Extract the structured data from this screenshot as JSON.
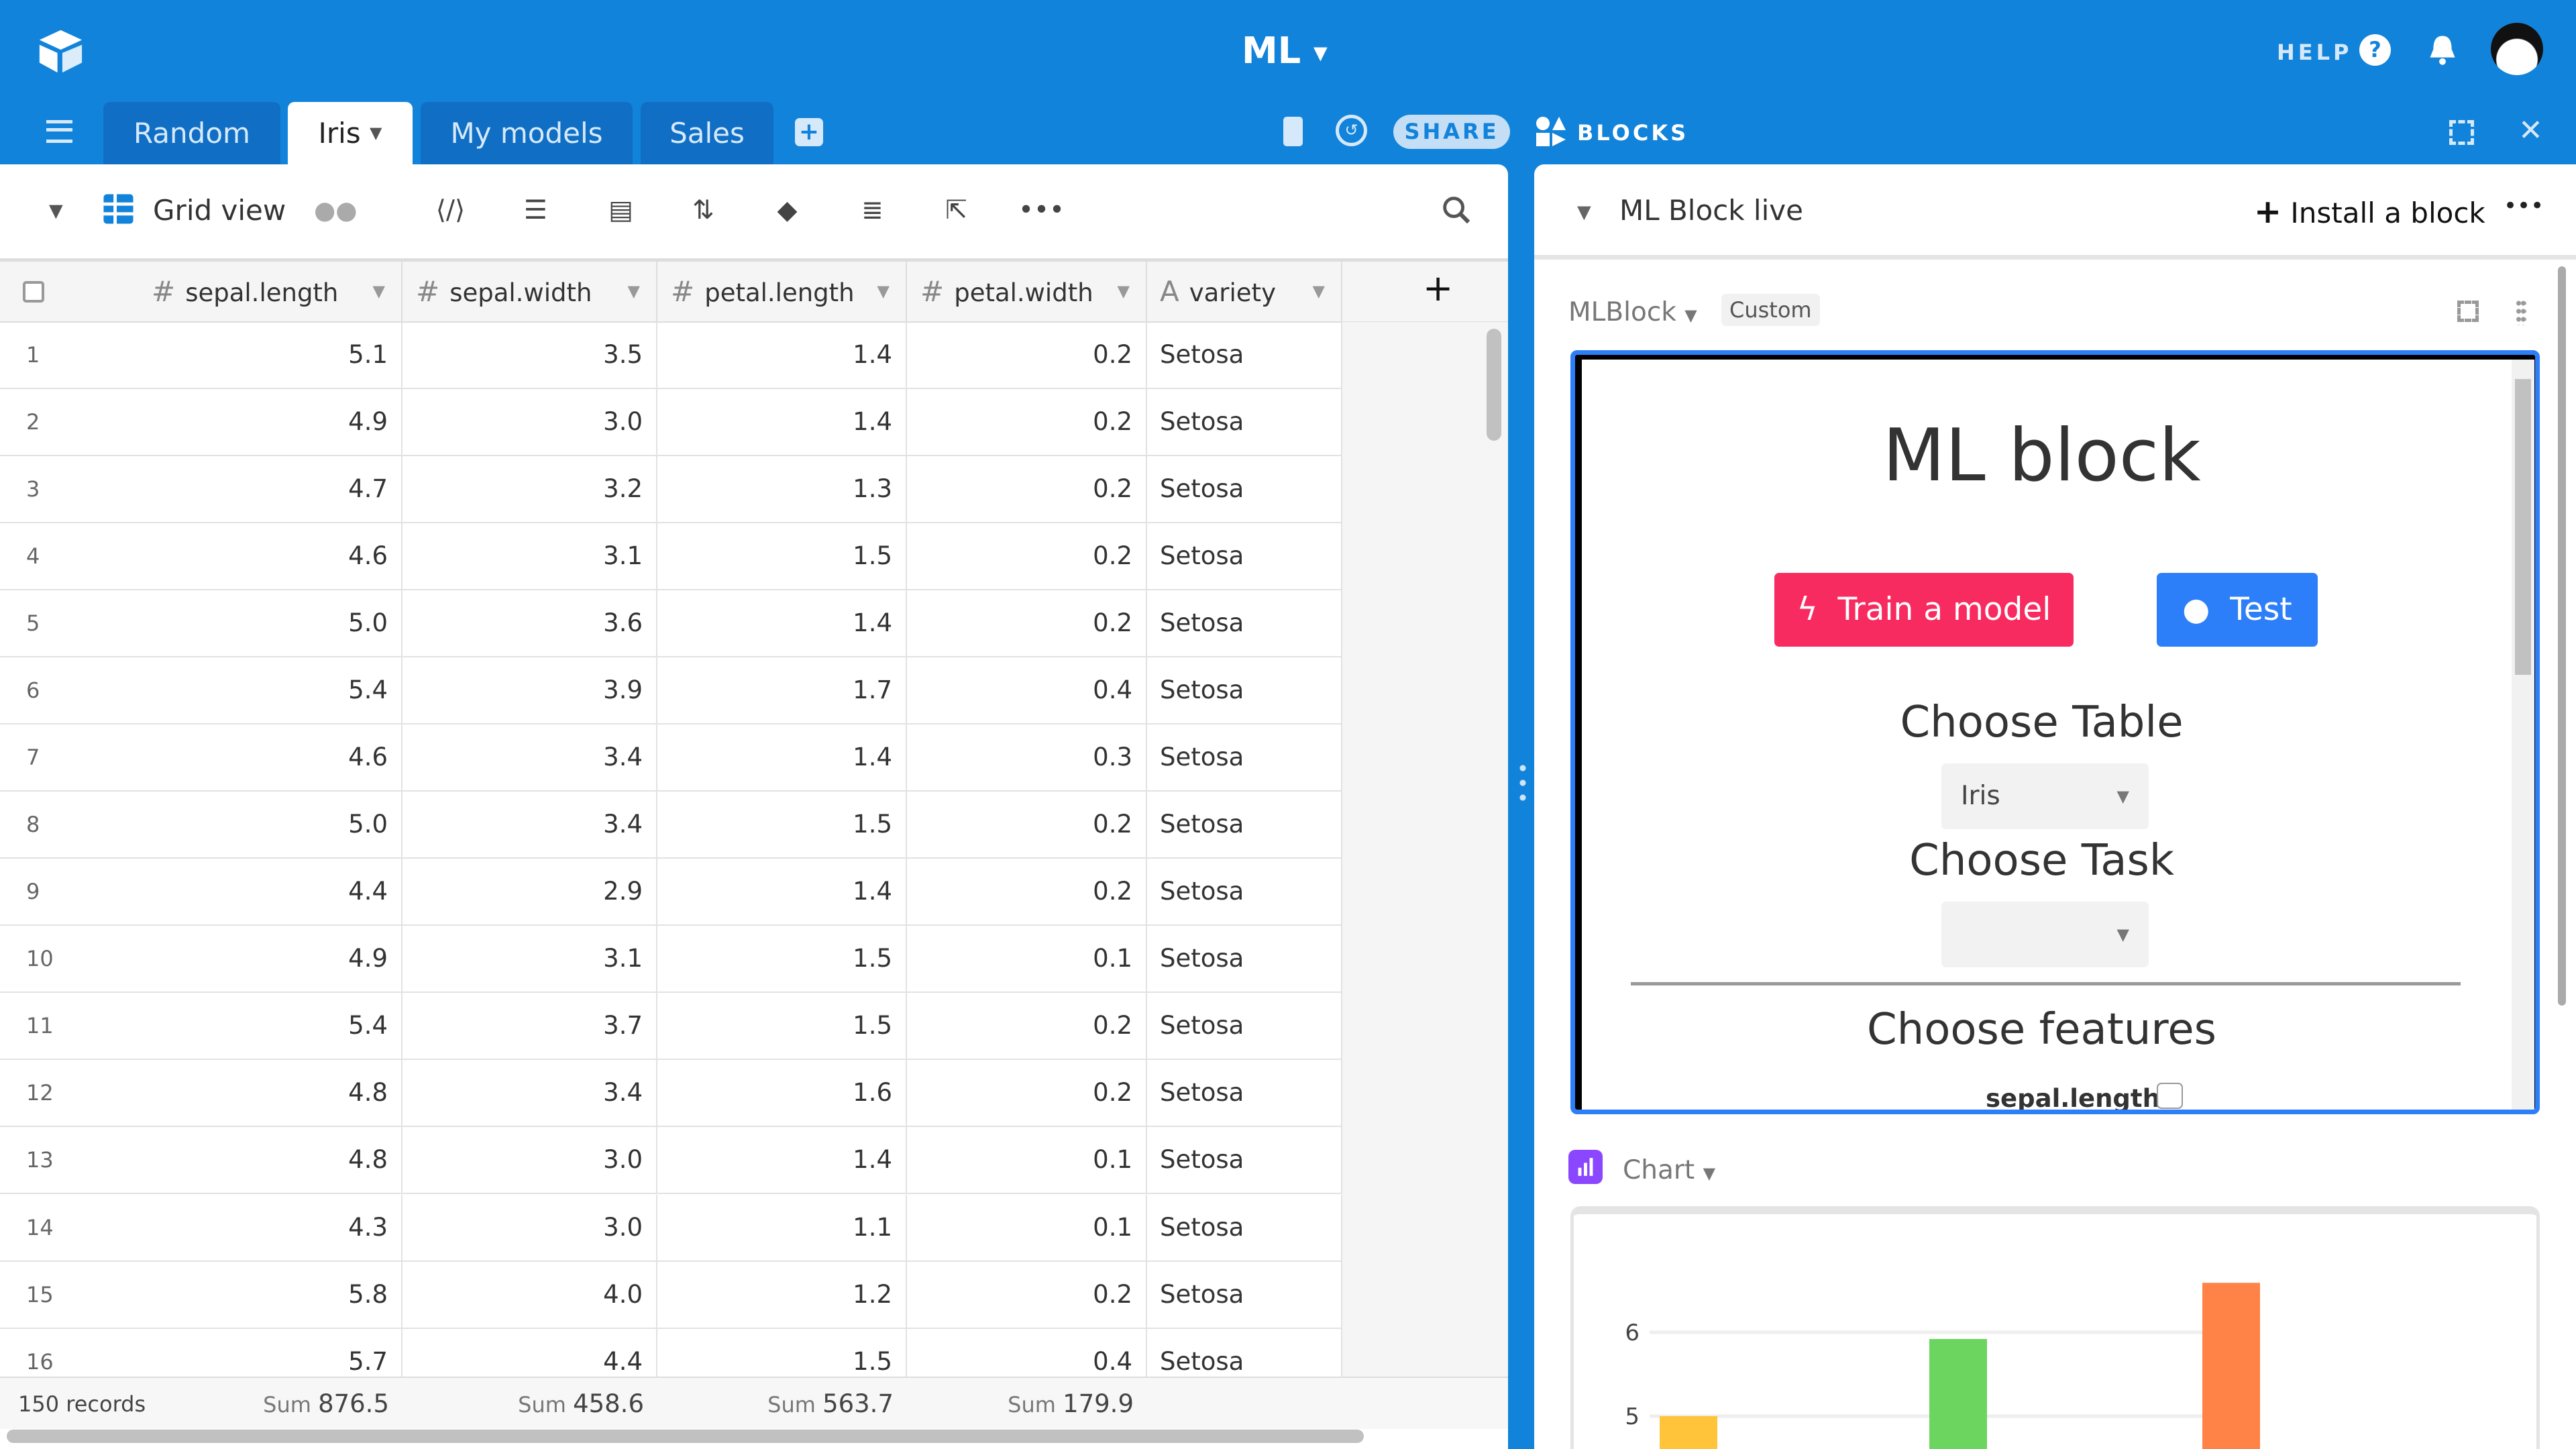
{
  "app": {
    "title": "ML",
    "help_label": "HELP"
  },
  "tabs": [
    {
      "label": "Random"
    },
    {
      "label": "Iris"
    },
    {
      "label": "My models"
    },
    {
      "label": "Sales"
    }
  ],
  "share_label": "SHARE",
  "blocks_label": "BLOCKS",
  "toolbar": {
    "view_name": "Grid view"
  },
  "table": {
    "columns": [
      {
        "label": "sepal.length",
        "icon": "#"
      },
      {
        "label": "sepal.width",
        "icon": "#"
      },
      {
        "label": "petal.length",
        "icon": "#"
      },
      {
        "label": "petal.width",
        "icon": "#"
      },
      {
        "label": "variety",
        "icon": "A"
      }
    ],
    "rows": [
      [
        "1",
        "5.1",
        "3.5",
        "1.4",
        "0.2",
        "Setosa"
      ],
      [
        "2",
        "4.9",
        "3.0",
        "1.4",
        "0.2",
        "Setosa"
      ],
      [
        "3",
        "4.7",
        "3.2",
        "1.3",
        "0.2",
        "Setosa"
      ],
      [
        "4",
        "4.6",
        "3.1",
        "1.5",
        "0.2",
        "Setosa"
      ],
      [
        "5",
        "5.0",
        "3.6",
        "1.4",
        "0.2",
        "Setosa"
      ],
      [
        "6",
        "5.4",
        "3.9",
        "1.7",
        "0.4",
        "Setosa"
      ],
      [
        "7",
        "4.6",
        "3.4",
        "1.4",
        "0.3",
        "Setosa"
      ],
      [
        "8",
        "5.0",
        "3.4",
        "1.5",
        "0.2",
        "Setosa"
      ],
      [
        "9",
        "4.4",
        "2.9",
        "1.4",
        "0.2",
        "Setosa"
      ],
      [
        "10",
        "4.9",
        "3.1",
        "1.5",
        "0.1",
        "Setosa"
      ],
      [
        "11",
        "5.4",
        "3.7",
        "1.5",
        "0.2",
        "Setosa"
      ],
      [
        "12",
        "4.8",
        "3.4",
        "1.6",
        "0.2",
        "Setosa"
      ],
      [
        "13",
        "4.8",
        "3.0",
        "1.4",
        "0.1",
        "Setosa"
      ],
      [
        "14",
        "4.3",
        "3.0",
        "1.1",
        "0.1",
        "Setosa"
      ],
      [
        "15",
        "5.8",
        "4.0",
        "1.2",
        "0.2",
        "Setosa"
      ],
      [
        "16",
        "5.7",
        "4.4",
        "1.5",
        "0.4",
        "Setosa"
      ]
    ],
    "footer": {
      "records": "150 records",
      "sum_label": "Sum",
      "sums": [
        "876.5",
        "458.6",
        "563.7",
        "179.9"
      ]
    }
  },
  "blocks_panel": {
    "dashboard_name": "ML Block live",
    "install_label": "Install a block",
    "ml_block": {
      "name": "MLBlock",
      "badge": "Custom",
      "heading": "ML block",
      "train_label": "Train a model",
      "test_label": "Test",
      "choose_table": "Choose Table",
      "table_value": "Iris",
      "choose_task": "Choose Task",
      "task_value": "",
      "choose_features": "Choose features",
      "feature_1": "sepal.length"
    },
    "chart_block": {
      "name": "Chart"
    }
  },
  "colors": {
    "brand": "#1283da",
    "train": "#f82b60",
    "test": "#2d7ff9"
  },
  "chart_data": {
    "type": "bar",
    "categories": [
      "",
      "",
      ""
    ],
    "values": [
      5.0,
      5.92,
      6.59
    ],
    "colors": [
      "#ffc43a",
      "#6cd55f",
      "#ff8347"
    ],
    "yticks": [
      "5",
      "6"
    ],
    "ylim": [
      4.5,
      7
    ],
    "grid": true
  }
}
